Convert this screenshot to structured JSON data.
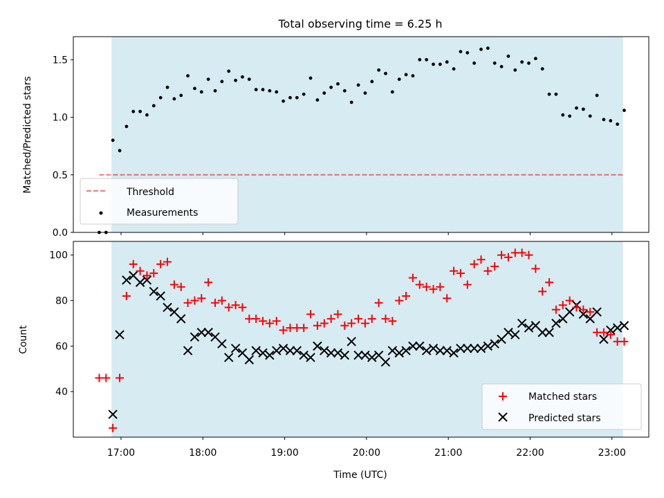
{
  "title": "Total observing time = 6.25 h",
  "colors": {
    "shade": "#add8e6",
    "threshold": "#ff0000",
    "measurements": "#000000",
    "matched": "#ff0000",
    "predicted": "#000000"
  },
  "chart_data": [
    {
      "type": "scatter",
      "panel": "top",
      "ylabel": "Matched/Predicted stars",
      "ylim": [
        0,
        1.7
      ],
      "yticks": [
        0.0,
        0.5,
        1.0,
        1.5
      ],
      "ytick_labels": [
        "0.0",
        "0.5",
        "1.0",
        "1.5"
      ],
      "xlim": [
        "16:25",
        "23:27"
      ],
      "observing_window": [
        "16:53",
        "23:08"
      ],
      "legend": {
        "placement": "lower-left",
        "entries": [
          "Threshold",
          "Measurements"
        ]
      },
      "threshold": {
        "name": "Threshold",
        "y": 0.5,
        "x": [
          "16:44",
          "23:08"
        ],
        "style": "dashed"
      },
      "series": [
        {
          "name": "Measurements",
          "marker": "dot",
          "x": [
            "16:44",
            "16:49",
            "16:54",
            "16:59",
            "17:04",
            "17:09",
            "17:14",
            "17:19",
            "17:24",
            "17:29",
            "17:34",
            "17:39",
            "17:44",
            "17:49",
            "17:54",
            "17:59",
            "18:04",
            "18:09",
            "18:14",
            "18:19",
            "18:24",
            "18:29",
            "18:34",
            "18:39",
            "18:44",
            "18:49",
            "18:54",
            "18:59",
            "19:04",
            "19:09",
            "19:14",
            "19:19",
            "19:24",
            "19:29",
            "19:34",
            "19:39",
            "19:44",
            "19:49",
            "19:54",
            "19:59",
            "20:04",
            "20:09",
            "20:14",
            "20:19",
            "20:24",
            "20:29",
            "20:34",
            "20:39",
            "20:44",
            "20:49",
            "20:54",
            "20:59",
            "21:04",
            "21:09",
            "21:14",
            "21:19",
            "21:24",
            "21:29",
            "21:34",
            "21:39",
            "21:44",
            "21:49",
            "21:54",
            "21:59",
            "22:04",
            "22:09",
            "22:14",
            "22:19",
            "22:24",
            "22:29",
            "22:34",
            "22:39",
            "22:44",
            "22:49",
            "22:54",
            "22:59",
            "23:04",
            "23:09"
          ],
          "y": [
            0.0,
            0.0,
            0.8,
            0.71,
            0.92,
            1.05,
            1.05,
            1.02,
            1.1,
            1.17,
            1.26,
            1.16,
            1.19,
            1.36,
            1.25,
            1.22,
            1.33,
            1.23,
            1.31,
            1.4,
            1.32,
            1.35,
            1.33,
            1.24,
            1.24,
            1.23,
            1.22,
            1.14,
            1.17,
            1.17,
            1.2,
            1.34,
            1.15,
            1.21,
            1.26,
            1.29,
            1.23,
            1.13,
            1.28,
            1.21,
            1.31,
            1.41,
            1.38,
            1.22,
            1.33,
            1.37,
            1.36,
            1.5,
            1.5,
            1.46,
            1.46,
            1.48,
            1.42,
            1.57,
            1.56,
            1.47,
            1.59,
            1.6,
            1.47,
            1.44,
            1.53,
            1.41,
            1.48,
            1.47,
            1.51,
            1.42,
            1.2,
            1.2,
            1.02,
            1.01,
            1.08,
            1.07,
            1.01,
            1.19,
            0.98,
            0.97,
            0.94,
            1.06
          ]
        }
      ]
    },
    {
      "type": "scatter",
      "panel": "bottom",
      "xlabel": "Time (UTC)",
      "ylabel": "Count",
      "ylim": [
        20,
        106
      ],
      "yticks": [
        40,
        60,
        80,
        100
      ],
      "ytick_labels": [
        "40",
        "60",
        "80",
        "100"
      ],
      "xlim": [
        "16:25",
        "23:27"
      ],
      "xticks": [
        "17:00",
        "18:00",
        "19:00",
        "20:00",
        "21:00",
        "22:00",
        "23:00"
      ],
      "observing_window": [
        "16:53",
        "23:08"
      ],
      "legend": {
        "placement": "lower-right",
        "entries": [
          "Matched stars",
          "Predicted stars"
        ]
      },
      "x": [
        "16:44",
        "16:49",
        "16:54",
        "16:59",
        "17:04",
        "17:09",
        "17:14",
        "17:19",
        "17:24",
        "17:29",
        "17:34",
        "17:39",
        "17:44",
        "17:49",
        "17:54",
        "17:59",
        "18:04",
        "18:09",
        "18:14",
        "18:19",
        "18:24",
        "18:29",
        "18:34",
        "18:39",
        "18:44",
        "18:49",
        "18:54",
        "18:59",
        "19:04",
        "19:09",
        "19:14",
        "19:19",
        "19:24",
        "19:29",
        "19:34",
        "19:39",
        "19:44",
        "19:49",
        "19:54",
        "19:59",
        "20:04",
        "20:09",
        "20:14",
        "20:19",
        "20:24",
        "20:29",
        "20:34",
        "20:39",
        "20:44",
        "20:49",
        "20:54",
        "20:59",
        "21:04",
        "21:09",
        "21:14",
        "21:19",
        "21:24",
        "21:29",
        "21:34",
        "21:39",
        "21:44",
        "21:49",
        "21:54",
        "21:59",
        "22:04",
        "22:09",
        "22:14",
        "22:19",
        "22:24",
        "22:29",
        "22:34",
        "22:39",
        "22:44",
        "22:49",
        "22:54",
        "22:59",
        "23:04",
        "23:09"
      ],
      "series": [
        {
          "name": "Matched stars",
          "marker": "plus",
          "values": [
            46,
            46,
            24,
            46,
            82,
            96,
            93,
            91,
            92,
            96,
            97,
            87,
            86,
            79,
            80,
            81,
            88,
            79,
            80,
            77,
            78,
            77,
            72,
            72,
            71,
            70,
            71,
            67,
            68,
            68,
            68,
            74,
            69,
            70,
            72,
            74,
            69,
            70,
            72,
            70,
            72,
            79,
            72,
            71,
            80,
            82,
            90,
            87,
            86,
            85,
            86,
            81,
            93,
            92,
            87,
            96,
            98,
            93,
            95,
            100,
            99,
            101,
            101,
            100,
            94,
            84,
            88,
            76,
            78,
            80,
            77,
            76,
            75,
            66,
            66,
            65,
            62,
            62
          ]
        },
        {
          "name": "Predicted stars",
          "marker": "x",
          "values": [
            null,
            null,
            30,
            65,
            89,
            91,
            88,
            89,
            84,
            82,
            77,
            75,
            72,
            58,
            64,
            66,
            66,
            64,
            61,
            55,
            59,
            57,
            54,
            58,
            57,
            56,
            58,
            59,
            58,
            58,
            56,
            55,
            60,
            58,
            57,
            57,
            56,
            62,
            56,
            56,
            55,
            56,
            53,
            58,
            57,
            58,
            60,
            60,
            58,
            59,
            58,
            58,
            57,
            59,
            59,
            59,
            59,
            60,
            61,
            63,
            66,
            65,
            70,
            68,
            69,
            66,
            66,
            70,
            72,
            75,
            78,
            74,
            72,
            75,
            63,
            67,
            68,
            69
          ]
        }
      ]
    }
  ]
}
